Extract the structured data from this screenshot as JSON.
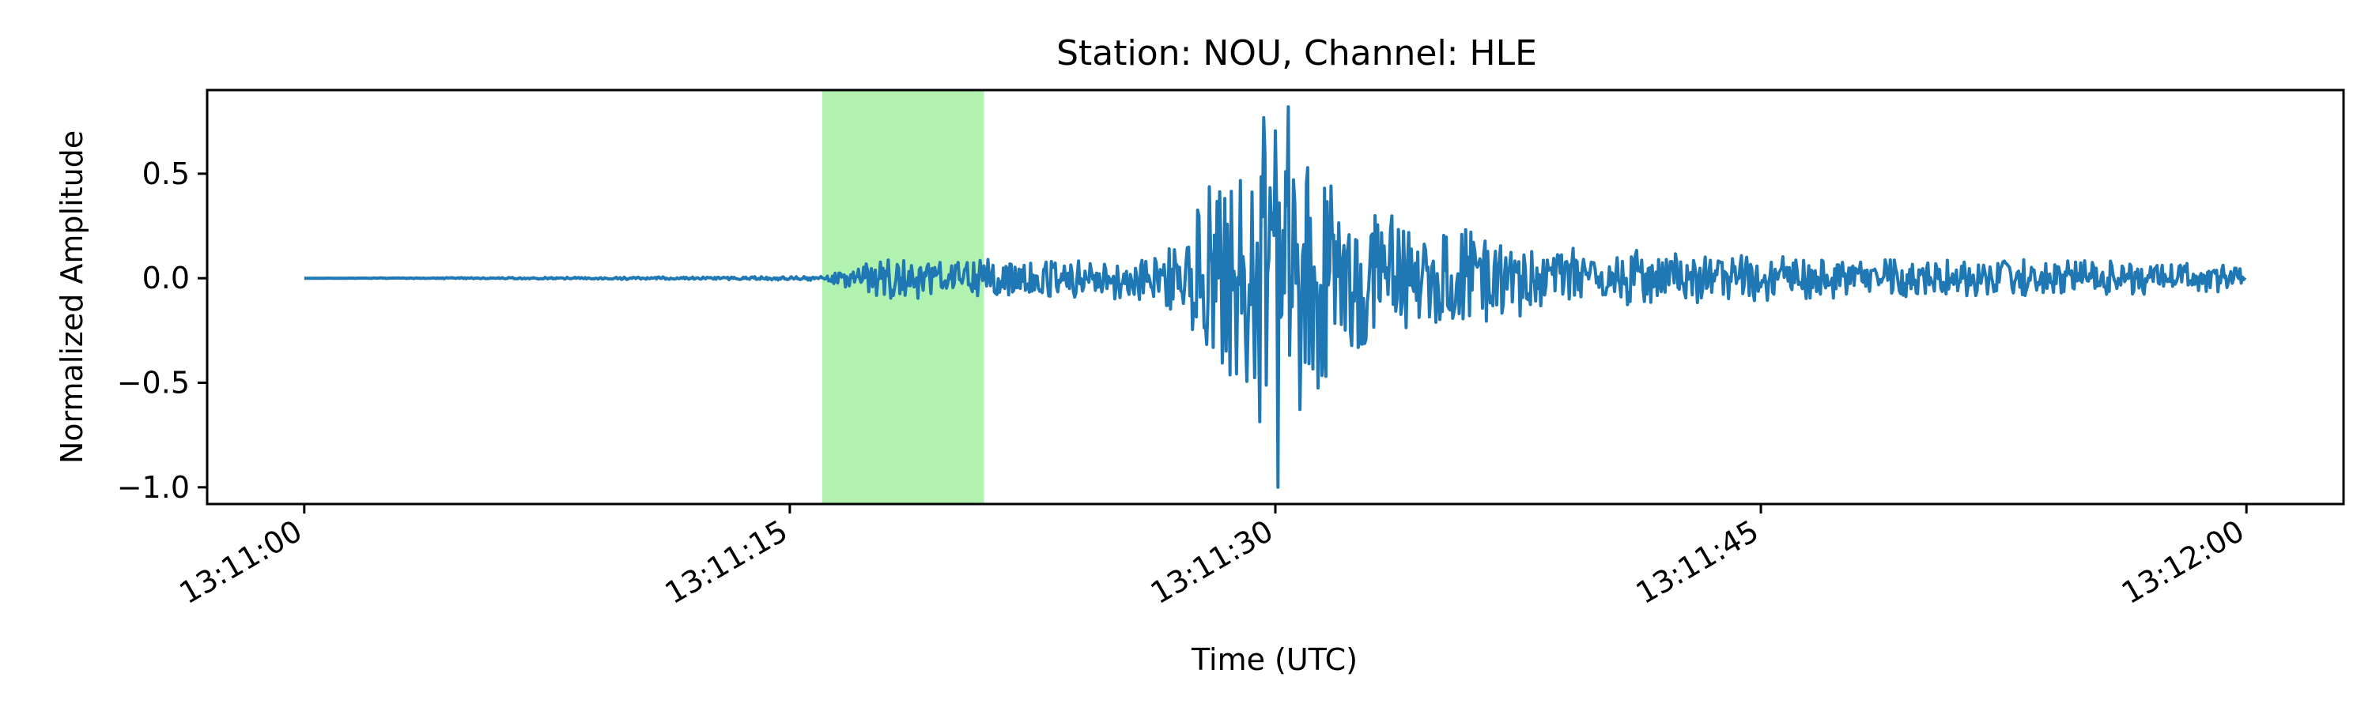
{
  "chart_data": {
    "type": "line",
    "title": "Station: NOU, Channel: HLE",
    "xlabel": "Time (UTC)",
    "ylabel": "Normalized Amplitude",
    "x_unit": "time",
    "xlim": [
      "13:10:57",
      "13:12:03"
    ],
    "ylim": [
      -1.08,
      0.9
    ],
    "grid": false,
    "legend": "none",
    "x_ticks": [
      "13:11:00",
      "13:11:15",
      "13:11:30",
      "13:11:45",
      "13:12:00"
    ],
    "y_ticks": [
      0.5,
      0.0,
      -0.5,
      -1.0
    ],
    "y_tick_labels": [
      "0.5",
      "0.0",
      "−0.5",
      "−1.0"
    ],
    "highlight_window": {
      "start": "13:11:16.0",
      "end": "13:11:21.0",
      "color": "#b2f2b0"
    },
    "series": [
      {
        "color": "#1f77b4",
        "x": [
          "13:11:00",
          "13:11:16",
          "13:11:17",
          "13:11:18",
          "13:11:19",
          "13:11:20",
          "13:11:21",
          "13:11:22",
          "13:11:23",
          "13:11:24",
          "13:11:25",
          "13:11:26",
          "13:11:27",
          "13:11:28",
          "13:11:29",
          "13:11:30",
          "13:11:31",
          "13:11:32",
          "13:11:33",
          "13:11:34",
          "13:11:35",
          "13:11:36",
          "13:11:37",
          "13:11:38",
          "13:11:39",
          "13:11:40",
          "13:11:42",
          "13:11:45",
          "13:11:48",
          "13:11:51",
          "13:11:54",
          "13:11:57",
          "13:12:00"
        ],
        "envelope": [
          0.0,
          0.01,
          0.06,
          0.1,
          0.1,
          0.09,
          0.1,
          0.09,
          0.1,
          0.09,
          0.1,
          0.11,
          0.2,
          0.55,
          0.62,
          0.95,
          0.62,
          0.42,
          0.38,
          0.32,
          0.28,
          0.25,
          0.2,
          0.17,
          0.15,
          0.14,
          0.13,
          0.11,
          0.1,
          0.1,
          0.09,
          0.08,
          0.06
        ],
        "peak_max": {
          "time": "13:11:30.4",
          "value": 0.82
        },
        "peak_min": {
          "time": "13:11:30.1",
          "value": -1.0
        }
      }
    ]
  }
}
